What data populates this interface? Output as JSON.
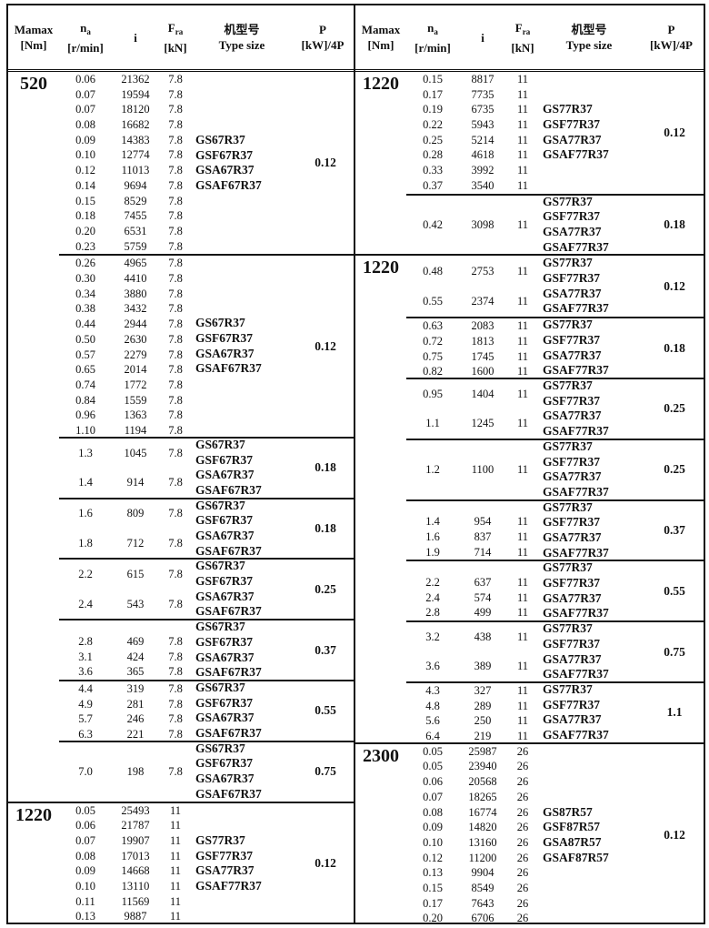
{
  "header": {
    "mamax": [
      "Mamax",
      "[Nm]"
    ],
    "na": {
      "symbol": "n",
      "sub": "a",
      "unit": "[r/min]"
    },
    "i": "i",
    "fra": {
      "symbol": "F",
      "sub": "ra",
      "unit": "[kN]"
    },
    "type": [
      "机型号",
      "Type size"
    ],
    "p": [
      "P",
      "[kW]/4P"
    ]
  },
  "panels": [
    {
      "groups": [
        {
          "mamax": "520",
          "blocks": [
            {
              "rows": [
                [
                  "0.06",
                  "21362",
                  "7.8"
                ],
                [
                  "0.07",
                  "19594",
                  "7.8"
                ],
                [
                  "0.07",
                  "18120",
                  "7.8"
                ],
                [
                  "0.08",
                  "16682",
                  "7.8"
                ],
                [
                  "0.09",
                  "14383",
                  "7.8"
                ],
                [
                  "0.10",
                  "12774",
                  "7.8"
                ],
                [
                  "0.12",
                  "11013",
                  "7.8"
                ],
                [
                  "0.14",
                  "9694",
                  "7.8"
                ],
                [
                  "0.15",
                  "8529",
                  "7.8"
                ],
                [
                  "0.18",
                  "7455",
                  "7.8"
                ],
                [
                  "0.20",
                  "6531",
                  "7.8"
                ],
                [
                  "0.23",
                  "5759",
                  "7.8"
                ]
              ],
              "types": [
                "GS67R37",
                "GSF67R37",
                "GSA67R37",
                "GSAF67R37"
              ],
              "p": "0.12"
            },
            {
              "rows": [
                [
                  "0.26",
                  "4965",
                  "7.8"
                ],
                [
                  "0.30",
                  "4410",
                  "7.8"
                ],
                [
                  "0.34",
                  "3880",
                  "7.8"
                ],
                [
                  "0.38",
                  "3432",
                  "7.8"
                ],
                [
                  "0.44",
                  "2944",
                  "7.8"
                ],
                [
                  "0.50",
                  "2630",
                  "7.8"
                ],
                [
                  "0.57",
                  "2279",
                  "7.8"
                ],
                [
                  "0.65",
                  "2014",
                  "7.8"
                ],
                [
                  "0.74",
                  "1772",
                  "7.8"
                ],
                [
                  "0.84",
                  "1559",
                  "7.8"
                ],
                [
                  "0.96",
                  "1363",
                  "7.8"
                ],
                [
                  "1.10",
                  "1194",
                  "7.8"
                ]
              ],
              "types": [
                "GS67R37",
                "GSF67R37",
                "GSA67R37",
                "GSAF67R37"
              ],
              "p": "0.12"
            },
            {
              "rows": [
                [
                  "1.3",
                  "1045",
                  "7.8"
                ],
                [
                  "1.4",
                  "914",
                  "7.8"
                ]
              ],
              "types": [
                "GS67R37",
                "GSF67R37",
                "GSA67R37",
                "GSAF67R37"
              ],
              "p": "0.18"
            },
            {
              "rows": [
                [
                  "1.6",
                  "809",
                  "7.8"
                ],
                [
                  "1.8",
                  "712",
                  "7.8"
                ]
              ],
              "types": [
                "GS67R37",
                "GSF67R37",
                "GSA67R37",
                "GSAF67R37"
              ],
              "p": "0.18"
            },
            {
              "rows": [
                [
                  "2.2",
                  "615",
                  "7.8"
                ],
                [
                  "2.4",
                  "543",
                  "7.8"
                ]
              ],
              "types": [
                "GS67R37",
                "GSF67R37",
                "GSA67R37",
                "GSAF67R37"
              ],
              "p": "0.25"
            },
            {
              "rows": [
                [
                  "2.8",
                  "469",
                  "7.8"
                ],
                [
                  "3.1",
                  "424",
                  "7.8"
                ],
                [
                  "3.6",
                  "365",
                  "7.8"
                ]
              ],
              "types": [
                "GS67R37",
                "GSF67R37",
                "GSA67R37",
                "GSAF67R37"
              ],
              "p": "0.37"
            },
            {
              "rows": [
                [
                  "4.4",
                  "319",
                  "7.8"
                ],
                [
                  "4.9",
                  "281",
                  "7.8"
                ],
                [
                  "5.7",
                  "246",
                  "7.8"
                ],
                [
                  "6.3",
                  "221",
                  "7.8"
                ]
              ],
              "types": [
                "GS67R37",
                "GSF67R37",
                "GSA67R37",
                "GSAF67R37"
              ],
              "p": "0.55"
            },
            {
              "rows": [
                [
                  "7.0",
                  "198",
                  "7.8"
                ]
              ],
              "types": [
                "GS67R37",
                "GSF67R37",
                "GSA67R37",
                "GSAF67R37"
              ],
              "p": "0.75"
            }
          ]
        },
        {
          "mamax": "1220",
          "blocks": [
            {
              "rows": [
                [
                  "0.05",
                  "25493",
                  "11"
                ],
                [
                  "0.06",
                  "21787",
                  "11"
                ],
                [
                  "0.07",
                  "19907",
                  "11"
                ],
                [
                  "0.08",
                  "17013",
                  "11"
                ],
                [
                  "0.09",
                  "14668",
                  "11"
                ],
                [
                  "0.10",
                  "13110",
                  "11"
                ],
                [
                  "0.11",
                  "11569",
                  "11"
                ],
                [
                  "0.13",
                  "9887",
                  "11"
                ]
              ],
              "types": [
                "GS77R37",
                "GSF77R37",
                "GSA77R37",
                "GSAF77R37"
              ],
              "p": "0.12"
            }
          ]
        }
      ]
    },
    {
      "groups": [
        {
          "mamax": "1220",
          "blocks": [
            {
              "rows": [
                [
                  "0.15",
                  "8817",
                  "11"
                ],
                [
                  "0.17",
                  "7735",
                  "11"
                ],
                [
                  "0.19",
                  "6735",
                  "11"
                ],
                [
                  "0.22",
                  "5943",
                  "11"
                ],
                [
                  "0.25",
                  "5214",
                  "11"
                ],
                [
                  "0.28",
                  "4618",
                  "11"
                ],
                [
                  "0.33",
                  "3992",
                  "11"
                ],
                [
                  "0.37",
                  "3540",
                  "11"
                ]
              ],
              "types": [
                "GS77R37",
                "GSF77R37",
                "GSA77R37",
                "GSAF77R37"
              ],
              "p": "0.12"
            },
            {
              "rows": [
                [
                  "0.42",
                  "3098",
                  "11"
                ]
              ],
              "types": [
                "GS77R37",
                "GSF77R37",
                "GSA77R37",
                "GSAF77R37"
              ],
              "p": "0.18"
            }
          ]
        },
        {
          "mamax": "1220",
          "blocks": [
            {
              "rows": [
                [
                  "0.48",
                  "2753",
                  "11"
                ],
                [
                  "0.55",
                  "2374",
                  "11"
                ]
              ],
              "types": [
                "GS77R37",
                "GSF77R37",
                "GSA77R37",
                "GSAF77R37"
              ],
              "p": "0.12"
            },
            {
              "rows": [
                [
                  "0.63",
                  "2083",
                  "11"
                ],
                [
                  "0.72",
                  "1813",
                  "11"
                ],
                [
                  "0.75",
                  "1745",
                  "11"
                ],
                [
                  "0.82",
                  "1600",
                  "11"
                ]
              ],
              "types": [
                "GS77R37",
                "GSF77R37",
                "GSA77R37",
                "GSAF77R37"
              ],
              "p": "0.18"
            },
            {
              "rows": [
                [
                  "0.95",
                  "1404",
                  "11"
                ],
                [
                  "1.1",
                  "1245",
                  "11"
                ]
              ],
              "types": [
                "GS77R37",
                "GSF77R37",
                "GSA77R37",
                "GSAF77R37"
              ],
              "p": "0.25"
            },
            {
              "rows": [
                [
                  "1.2",
                  "1100",
                  "11"
                ]
              ],
              "types": [
                "GS77R37",
                "GSF77R37",
                "GSA77R37",
                "GSAF77R37"
              ],
              "p": "0.25"
            },
            {
              "rows": [
                [
                  "1.4",
                  "954",
                  "11"
                ],
                [
                  "1.6",
                  "837",
                  "11"
                ],
                [
                  "1.9",
                  "714",
                  "11"
                ]
              ],
              "types": [
                "GS77R37",
                "GSF77R37",
                "GSA77R37",
                "GSAF77R37"
              ],
              "p": "0.37"
            },
            {
              "rows": [
                [
                  "2.2",
                  "637",
                  "11"
                ],
                [
                  "2.4",
                  "574",
                  "11"
                ],
                [
                  "2.8",
                  "499",
                  "11"
                ]
              ],
              "types": [
                "GS77R37",
                "GSF77R37",
                "GSA77R37",
                "GSAF77R37"
              ],
              "p": "0.55"
            },
            {
              "rows": [
                [
                  "3.2",
                  "438",
                  "11"
                ],
                [
                  "3.6",
                  "389",
                  "11"
                ]
              ],
              "types": [
                "GS77R37",
                "GSF77R37",
                "GSA77R37",
                "GSAF77R37"
              ],
              "p": "0.75"
            },
            {
              "rows": [
                [
                  "4.3",
                  "327",
                  "11"
                ],
                [
                  "4.8",
                  "289",
                  "11"
                ],
                [
                  "5.6",
                  "250",
                  "11"
                ],
                [
                  "6.4",
                  "219",
                  "11"
                ]
              ],
              "types": [
                "GS77R37",
                "GSF77R37",
                "GSA77R37",
                "GSAF77R37"
              ],
              "p": "1.1"
            }
          ]
        },
        {
          "mamax": "2300",
          "blocks": [
            {
              "rows": [
                [
                  "0.05",
                  "25987",
                  "26"
                ],
                [
                  "0.05",
                  "23940",
                  "26"
                ],
                [
                  "0.06",
                  "20568",
                  "26"
                ],
                [
                  "0.07",
                  "18265",
                  "26"
                ],
                [
                  "0.08",
                  "16774",
                  "26"
                ],
                [
                  "0.09",
                  "14820",
                  "26"
                ],
                [
                  "0.10",
                  "13160",
                  "26"
                ],
                [
                  "0.12",
                  "11200",
                  "26"
                ],
                [
                  "0.13",
                  "9904",
                  "26"
                ],
                [
                  "0.15",
                  "8549",
                  "26"
                ],
                [
                  "0.17",
                  "7643",
                  "26"
                ],
                [
                  "0.20",
                  "6706",
                  "26"
                ]
              ],
              "types": [
                "GS87R57",
                "GSF87R57",
                "GSA87R57",
                "GSAF87R57"
              ],
              "p": "0.12"
            }
          ]
        }
      ]
    }
  ]
}
